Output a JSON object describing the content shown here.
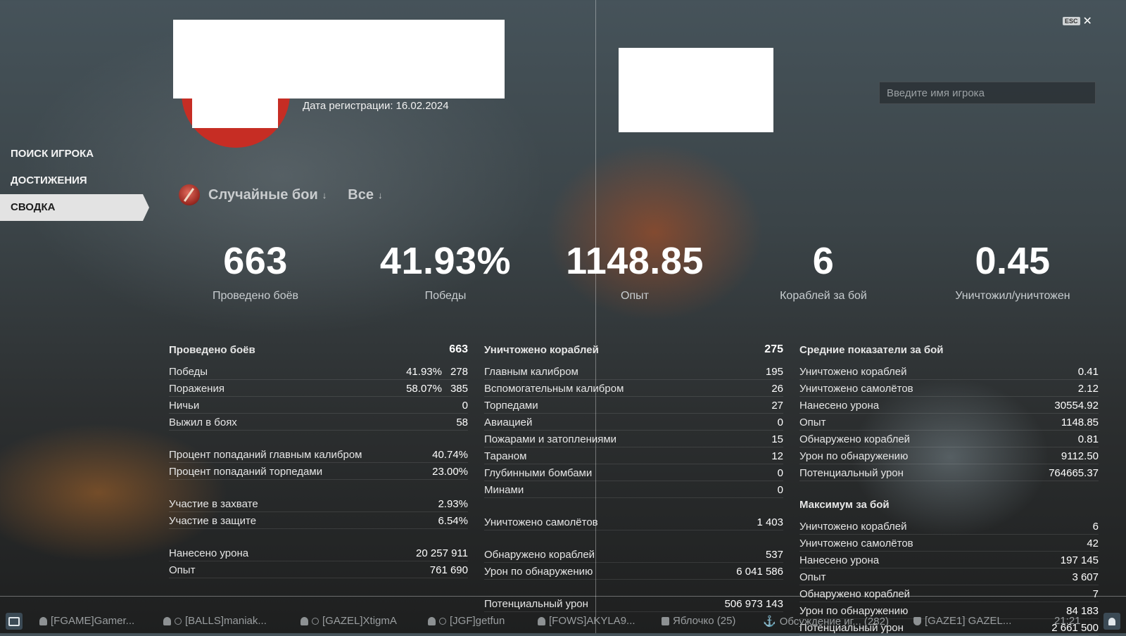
{
  "profile": {
    "reg_label": "Дата регистрации:",
    "reg_date": "16.02.2024"
  },
  "nav": {
    "items": [
      {
        "label": "ПОИСК ИГРОКА"
      },
      {
        "label": "ДОСТИЖЕНИЯ"
      },
      {
        "label": "СВОДКА",
        "active": true
      }
    ]
  },
  "search": {
    "placeholder": "Введите имя игрока"
  },
  "close": {
    "key": "ESC",
    "glyph": "✕"
  },
  "filters": {
    "mode": "Случайные бои",
    "arrow": "↓",
    "scope": "Все"
  },
  "summary": [
    {
      "value": "663",
      "label": "Проведено боёв"
    },
    {
      "value": "41.93%",
      "label": "Победы"
    },
    {
      "value": "1148.85",
      "label": "Опыт"
    },
    {
      "value": "6",
      "label": "Кораблей за бой"
    },
    {
      "value": "0.45",
      "label": "Уничтожил/уничтожен"
    }
  ],
  "col1": {
    "head": {
      "label": "Проведено боёв",
      "value": "663"
    },
    "groups": [
      [
        {
          "label": "Победы",
          "pct": "41.93%",
          "value": "278"
        },
        {
          "label": "Поражения",
          "pct": "58.07%",
          "value": "385"
        },
        {
          "label": "Ничьи",
          "value": "0"
        },
        {
          "label": "Выжил в боях",
          "value": "58"
        }
      ],
      [
        {
          "label": "Процент попаданий главным калибром",
          "value": "40.74%"
        },
        {
          "label": "Процент попаданий торпедами",
          "value": "23.00%"
        }
      ],
      [
        {
          "label": "Участие в захвате",
          "value": "2.93%"
        },
        {
          "label": "Участие в защите",
          "value": "6.54%"
        }
      ],
      [
        {
          "label": "Нанесено урона",
          "value": "20 257 911"
        },
        {
          "label": "Опыт",
          "value": "761 690"
        }
      ]
    ]
  },
  "col2": {
    "head": {
      "label": "Уничтожено кораблей",
      "value": "275"
    },
    "groups": [
      [
        {
          "label": "Главным калибром",
          "value": "195"
        },
        {
          "label": "Вспомогательным калибром",
          "value": "26"
        },
        {
          "label": "Торпедами",
          "value": "27"
        },
        {
          "label": "Авиацией",
          "value": "0"
        },
        {
          "label": "Пожарами и затоплениями",
          "value": "15"
        },
        {
          "label": "Тараном",
          "value": "12"
        },
        {
          "label": "Глубинными бомбами",
          "value": "0"
        },
        {
          "label": "Минами",
          "value": "0"
        }
      ],
      [
        {
          "label": "Уничтожено самолётов",
          "value": "1 403"
        }
      ],
      [
        {
          "label": "Обнаружено кораблей",
          "value": "537"
        },
        {
          "label": "Урон по обнаружению",
          "value": "6 041 586"
        }
      ],
      [
        {
          "label": "Потенциальный урон",
          "value": "506 973 143"
        }
      ]
    ]
  },
  "col3": {
    "head": {
      "label": "Средние показатели за бой"
    },
    "avg": [
      {
        "label": "Уничтожено кораблей",
        "value": "0.41"
      },
      {
        "label": "Уничтожено самолётов",
        "value": "2.12"
      },
      {
        "label": "Нанесено урона",
        "value": "30554.92"
      },
      {
        "label": "Опыт",
        "value": "1148.85"
      },
      {
        "label": "Обнаружено кораблей",
        "value": "0.81"
      },
      {
        "label": "Урон по обнаружению",
        "value": "9112.50"
      },
      {
        "label": "Потенциальный урон",
        "value": "764665.37"
      }
    ],
    "max_head": "Максимум за бой",
    "max": [
      {
        "label": "Уничтожено кораблей",
        "value": "6"
      },
      {
        "label": "Уничтожено самолётов",
        "value": "42"
      },
      {
        "label": "Нанесено урона",
        "value": "197 145"
      },
      {
        "label": "Опыт",
        "value": "3 607"
      },
      {
        "label": "Обнаружено кораблей",
        "value": "7"
      },
      {
        "label": "Урон по обнаружению",
        "value": "84 183"
      },
      {
        "label": "Потенциальный урон",
        "value": "2 661 500"
      }
    ]
  },
  "taskbar": {
    "items": [
      {
        "label": "[FGAME]Gamer...",
        "icon": "user-icon"
      },
      {
        "label": "[BALLS]maniak...",
        "icon": "user-icon"
      },
      {
        "label": "[GAZEL]XtigmA",
        "icon": "user-icon"
      },
      {
        "label": "[JGF]getfun",
        "icon": "user-icon"
      },
      {
        "label": "[FOWS]AKYLA9...",
        "icon": "user-icon"
      },
      {
        "label": "Яблочко (25)",
        "icon": "chat-icon"
      },
      {
        "label": "Обсуждение иг... (282)",
        "icon": "anchor-icon"
      },
      {
        "label": "[GAZE1] GAZEL...",
        "icon": "shield-icon"
      }
    ],
    "time": "21:21"
  }
}
